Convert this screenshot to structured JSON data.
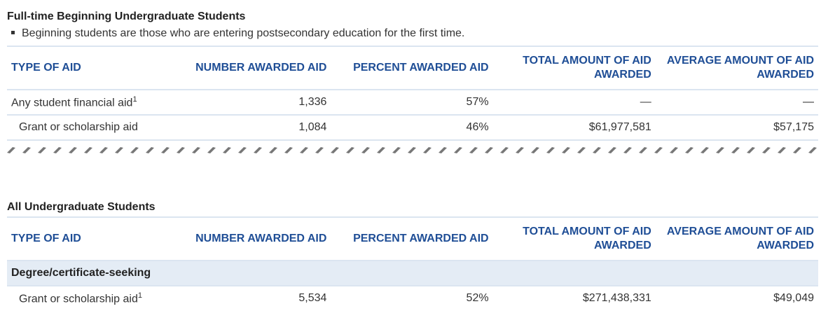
{
  "section1": {
    "title": "Full-time Beginning Undergraduate Students",
    "note": "Beginning students are those who are entering postsecondary education for the first time.",
    "headers": [
      "TYPE OF AID",
      "NUMBER AWARDED AID",
      "PERCENT AWARDED AID",
      "TOTAL AMOUNT OF AID AWARDED",
      "AVERAGE AMOUNT OF AID AWARDED"
    ],
    "rows": [
      {
        "type": "Any student financial aid",
        "footnote": "1",
        "number": "1,336",
        "percent": "57%",
        "total": "—",
        "average": "—"
      },
      {
        "type": "Grant or scholarship aid",
        "number": "1,084",
        "percent": "46%",
        "total": "$61,977,581",
        "average": "$57,175"
      }
    ]
  },
  "section2": {
    "title": "All Undergraduate Students",
    "headers": [
      "TYPE OF AID",
      "NUMBER AWARDED AID",
      "PERCENT AWARDED AID",
      "TOTAL AMOUNT OF AID AWARDED",
      "AVERAGE AMOUNT OF AID AWARDED"
    ],
    "group": "Degree/certificate-seeking",
    "rows": [
      {
        "type": "Grant or scholarship aid",
        "footnote": "1",
        "number": "5,534",
        "percent": "52%",
        "total": "$271,438,331",
        "average": "$49,049"
      }
    ]
  },
  "colors": {
    "header": "#1f4e96",
    "group_bg": "#e4ecf5",
    "border": "#dbe5f0"
  }
}
